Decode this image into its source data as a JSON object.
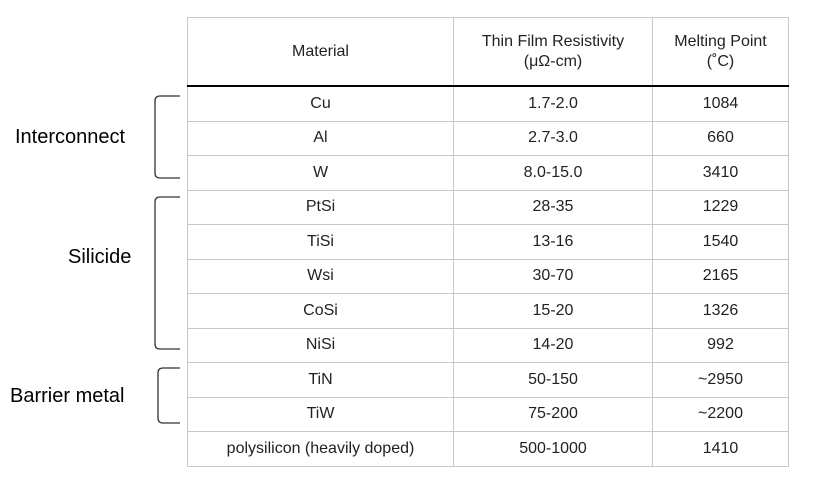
{
  "groups": [
    {
      "label": "Interconnect"
    },
    {
      "label": "Silicide"
    },
    {
      "label": "Barrier metal"
    }
  ],
  "table": {
    "headers": {
      "material": "Material",
      "resistivity_line1": "Thin Film Resistivity",
      "resistivity_line2": "(μΩ-cm)",
      "melting_line1": "Melting Point",
      "melting_line2": "(˚C)"
    },
    "rows": [
      {
        "material": "Cu",
        "resistivity": "1.7-2.0",
        "melting": "1084"
      },
      {
        "material": "Al",
        "resistivity": "2.7-3.0",
        "melting": "660"
      },
      {
        "material": "W",
        "resistivity": "8.0-15.0",
        "melting": "3410"
      },
      {
        "material": "PtSi",
        "resistivity": "28-35",
        "melting": "1229"
      },
      {
        "material": "TiSi",
        "resistivity": "13-16",
        "melting": "1540"
      },
      {
        "material": "Wsi",
        "resistivity": "30-70",
        "melting": "2165"
      },
      {
        "material": "CoSi",
        "resistivity": "15-20",
        "melting": "1326"
      },
      {
        "material": "NiSi",
        "resistivity": "14-20",
        "melting": "992"
      },
      {
        "material": "TiN",
        "resistivity": "50-150",
        "melting": "~2950"
      },
      {
        "material": "TiW",
        "resistivity": "75-200",
        "melting": "~2200"
      },
      {
        "material": "polysilicon (heavily doped)",
        "resistivity": "500-1000",
        "melting": "1410"
      }
    ]
  }
}
